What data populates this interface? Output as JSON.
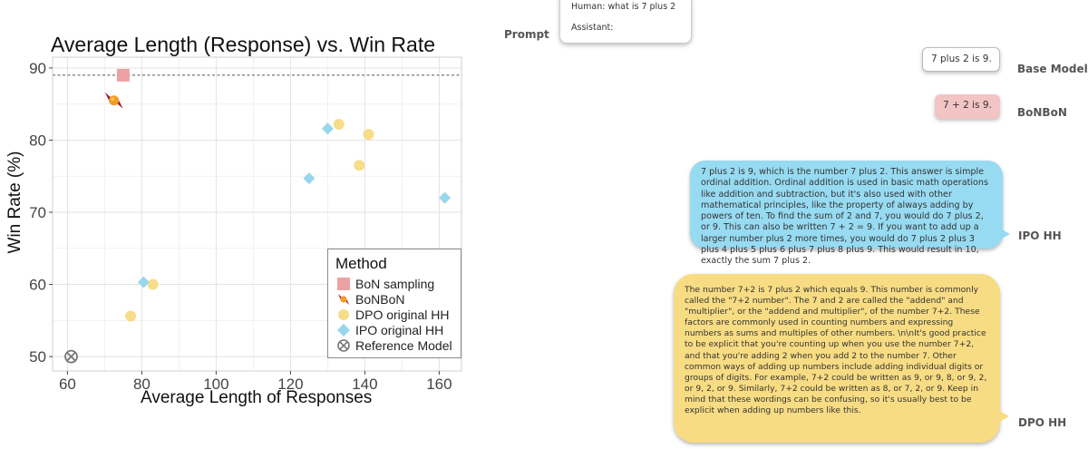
{
  "chart_data": {
    "type": "scatter",
    "title": "Average Length (Response) vs. Win Rate",
    "xlabel": "Average Length of Responses",
    "ylabel": "Win Rate (%)",
    "xlim": [
      56,
      166
    ],
    "ylim": [
      48,
      91.5
    ],
    "xticks": [
      60,
      80,
      100,
      120,
      140,
      160
    ],
    "yticks": [
      50,
      60,
      70,
      80,
      90
    ],
    "grid": true,
    "reference_line": {
      "y": 89,
      "style": "dashed"
    },
    "legend": {
      "title": "Method",
      "placement": "bottom-right"
    },
    "series": [
      {
        "name": "BoN sampling",
        "marker": "square",
        "color": "#eca2a2",
        "points": [
          [
            75,
            89.0
          ]
        ]
      },
      {
        "name": "BoNBoN",
        "marker": "candy",
        "color": "#9e1e2b",
        "points": [
          [
            72.5,
            85.5
          ]
        ]
      },
      {
        "name": "DPO original HH",
        "marker": "circle",
        "color": "#f7dd8a",
        "points": [
          [
            133,
            82.2
          ],
          [
            141,
            80.8
          ],
          [
            138.5,
            76.5
          ],
          [
            83,
            60.0
          ],
          [
            77,
            55.6
          ]
        ]
      },
      {
        "name": "IPO original HH",
        "marker": "diamond",
        "color": "#98d6ec",
        "points": [
          [
            130,
            81.6
          ],
          [
            125,
            74.7
          ],
          [
            161.5,
            72.0
          ],
          [
            80.5,
            60.3
          ]
        ]
      },
      {
        "name": "Reference Model",
        "marker": "circle-x",
        "color": "#777777",
        "points": [
          [
            61,
            50.0
          ]
        ]
      }
    ]
  },
  "prompt": {
    "label": "Prompt",
    "human": "Human: what is 7 plus 2",
    "assistant": "Assistant:"
  },
  "responses": {
    "base": {
      "label": "Base Model",
      "text": "7 plus 2 is  9."
    },
    "bonbon": {
      "label": "BoNBoN",
      "text": "7 + 2 is  9."
    },
    "ipo": {
      "label": "IPO HH",
      "text": "7 plus 2 is 9, which is the number 7 plus 2. This answer is simple ordinal addition. Ordinal addition is used in basic math operations like addition and subtraction, but it's also used with other mathematical principles, like the property of always adding by powers of ten. To find the sum of 2 and 7, you would do 7 plus 2, or 9. This can also be written 7 + 2  = 9. If you want to add up a larger number plus 2 more times, you would do 7 plus 2 plus 3 plus 4 plus 5 plus 6 plus 7 plus 8 plus 9. This would result in 10, exactly the sum 7 plus 2."
    },
    "dpo": {
      "label": "DPO HH",
      "text": "The number 7+2  is  7 plus 2  which equals  9.  This number is commonly called the \"7+2 number\".  The 7 and 2 are called the \"addend\" and \"multiplier\", or the \"addend and multiplier\", of the number 7+2.  These factors are commonly used in counting numbers and expressing numbers as sums and multiples of other numbers. \\n\\nIt's good practice to be explicit that you're counting up when you use the number 7+2,  and that you're adding 2 when you add 2 to the number 7.  Other common ways of adding up numbers include adding individual digits or groups of digits.  For example,  7+2 could be written as  9,  or  9, 8, or 9, 2, or 9, 2, or 9.  Similarly, 7+2 could be written as  8,  or  7, 2, or 9.  Keep in mind that these wordings can be confusing, so it's usually best to be explicit when adding up numbers like this."
    }
  }
}
